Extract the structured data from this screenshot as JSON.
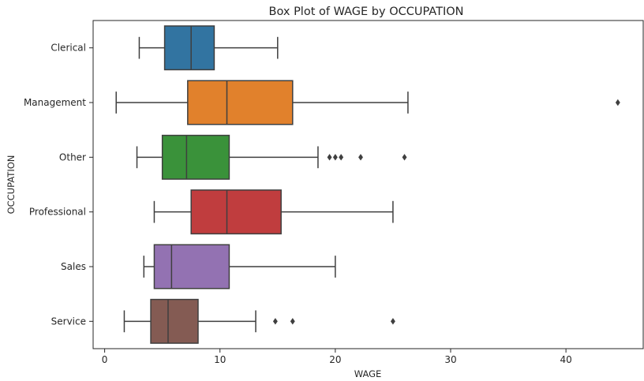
{
  "chart_data": {
    "type": "box",
    "orientation": "horizontal",
    "title": "Box Plot of WAGE by OCCUPATION",
    "xlabel": "WAGE",
    "ylabel": "OCCUPATION",
    "xlim": [
      -1.0,
      46.7
    ],
    "xticks": [
      0,
      10,
      20,
      30,
      40
    ],
    "grid": false,
    "legend": "none",
    "categories": [
      {
        "name": "Clerical",
        "color": "#3274a1",
        "whisker_low": 3.0,
        "q1": 5.2,
        "median": 7.5,
        "q3": 9.5,
        "whisker_high": 15.0,
        "outliers": []
      },
      {
        "name": "Management",
        "color": "#e1812c",
        "whisker_low": 1.0,
        "q1": 7.2,
        "median": 10.6,
        "q3": 16.3,
        "whisker_high": 26.3,
        "outliers": [
          44.5
        ]
      },
      {
        "name": "Other",
        "color": "#3a923a",
        "whisker_low": 2.8,
        "q1": 5.0,
        "median": 7.1,
        "q3": 10.8,
        "whisker_high": 18.5,
        "outliers": [
          19.5,
          20.0,
          20.5,
          22.2,
          26.0
        ]
      },
      {
        "name": "Professional",
        "color": "#c03d3e",
        "whisker_low": 4.3,
        "q1": 7.5,
        "median": 10.6,
        "q3": 15.3,
        "whisker_high": 25.0,
        "outliers": []
      },
      {
        "name": "Sales",
        "color": "#9372b2",
        "whisker_low": 3.4,
        "q1": 4.3,
        "median": 5.8,
        "q3": 10.8,
        "whisker_high": 20.0,
        "outliers": []
      },
      {
        "name": "Service",
        "color": "#845b53",
        "whisker_low": 1.7,
        "q1": 4.0,
        "median": 5.5,
        "q3": 8.1,
        "whisker_high": 13.1,
        "outliers": [
          14.8,
          16.3,
          25.0
        ]
      }
    ]
  }
}
